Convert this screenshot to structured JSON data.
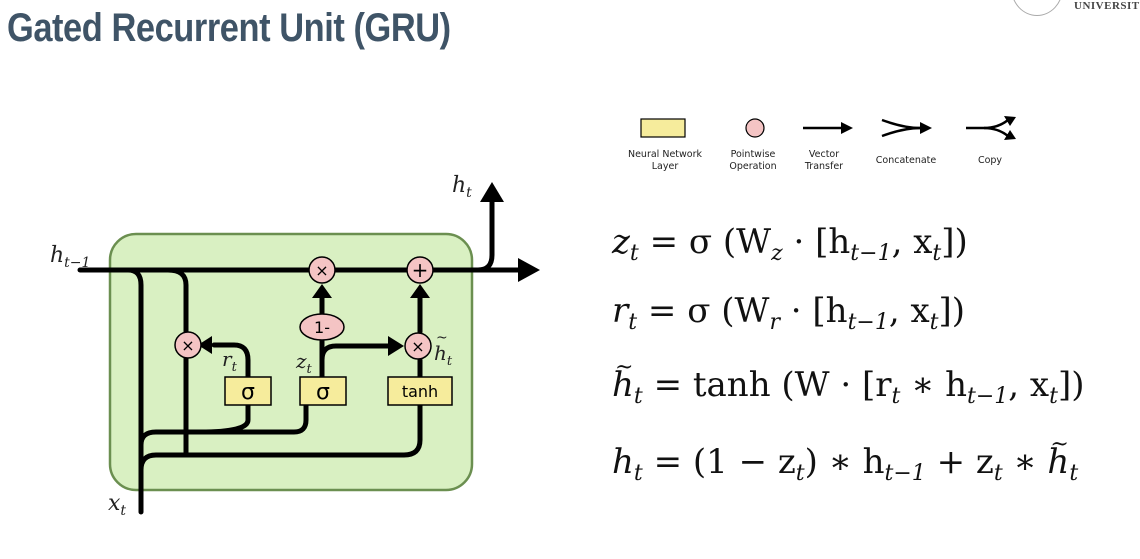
{
  "slide": {
    "title": "Gated Recurrent Unit (GRU)",
    "logo_text": "UNIVERSITY"
  },
  "legend": [
    {
      "icon": "neural-network-layer-icon",
      "label": "Neural Network\nLayer"
    },
    {
      "icon": "pointwise-operation-icon",
      "label": "Pointwise\nOperation"
    },
    {
      "icon": "vector-transfer-icon",
      "label": "Vector\nTransfer"
    },
    {
      "icon": "concatenate-icon",
      "label": "Concatenate"
    },
    {
      "icon": "copy-icon",
      "label": "Copy"
    }
  ],
  "diagram": {
    "labels": {
      "h_prev": "h",
      "h_prev_sub": "t−1",
      "h_out": "h",
      "h_out_sub": "t",
      "x_in": "x",
      "x_in_sub": "t",
      "r_gate": "r",
      "r_gate_sub": "t",
      "z_gate": "z",
      "z_gate_sub": "t",
      "h_tilde": "h",
      "h_tilde_sub": "t"
    },
    "layers": {
      "sigma_r": "σ",
      "sigma_z": "σ",
      "tanh": "tanh"
    },
    "ops": {
      "multiply_top": "×",
      "add_top": "+",
      "one_minus": "1-",
      "multiply_r": "×",
      "multiply_h": "×"
    }
  },
  "colors": {
    "cell_fill": "#d9f0c2",
    "cell_border": "#6b8f50",
    "layer_fill": "#f6ec9c",
    "op_fill": "#f4c4c4",
    "title": "#3f5467"
  },
  "equations": {
    "z": {
      "lhs": "z",
      "lhs_sub": "t",
      "rhs_head": "= σ (W",
      "w_sub": "z",
      "rhs_mid": " · [h",
      "h_sub": "t−1",
      "rhs_tail": ", x",
      "x_sub": "t",
      "close": "])"
    },
    "r": {
      "lhs": "r",
      "lhs_sub": "t",
      "rhs_head": "= σ (W",
      "w_sub": "r",
      "rhs_mid": " · [h",
      "h_sub": "t−1",
      "rhs_tail": ", x",
      "x_sub": "t",
      "close": "])"
    },
    "htilde": {
      "lhs": "h",
      "lhs_sub": "t",
      "rhs_head": "= tanh (W · [r",
      "r_sub": "t",
      "rhs_mid": " ∗ h",
      "h_sub": "t−1",
      "rhs_tail": ", x",
      "x_sub": "t",
      "close": "])"
    },
    "h": {
      "lhs": "h",
      "lhs_sub": "t",
      "rhs_head": "= (1 − z",
      "z_sub": "t",
      "rhs_mid": ") ∗ h",
      "h_sub": "t−1",
      "rhs_tail": " + z",
      "z2_sub": "t",
      "star": " ∗ ",
      "ht": "h",
      "ht_sub": "t"
    }
  }
}
